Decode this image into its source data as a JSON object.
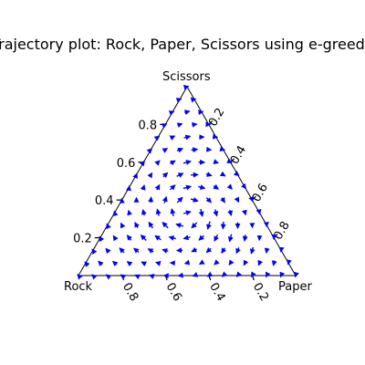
{
  "chart_data": {
    "type": "ternary-quiver",
    "title": "Trajectory plot: Rock, Paper, Scissors using e-greedy",
    "corners": {
      "left": "Rock",
      "right": "Paper",
      "top": "Scissors"
    },
    "axes": {
      "left_edge_ticks": [
        "0.2",
        "0.4",
        "0.6",
        "0.8"
      ],
      "right_edge_ticks": [
        "0.2",
        "0.4",
        "0.6",
        "0.8"
      ],
      "bottom_edge_ticks": [
        "0.8",
        "0.6",
        "0.4",
        "0.2"
      ]
    },
    "grid_resolution": 15,
    "arrow_color": "#0000ff",
    "grid": false,
    "legend": "none"
  }
}
